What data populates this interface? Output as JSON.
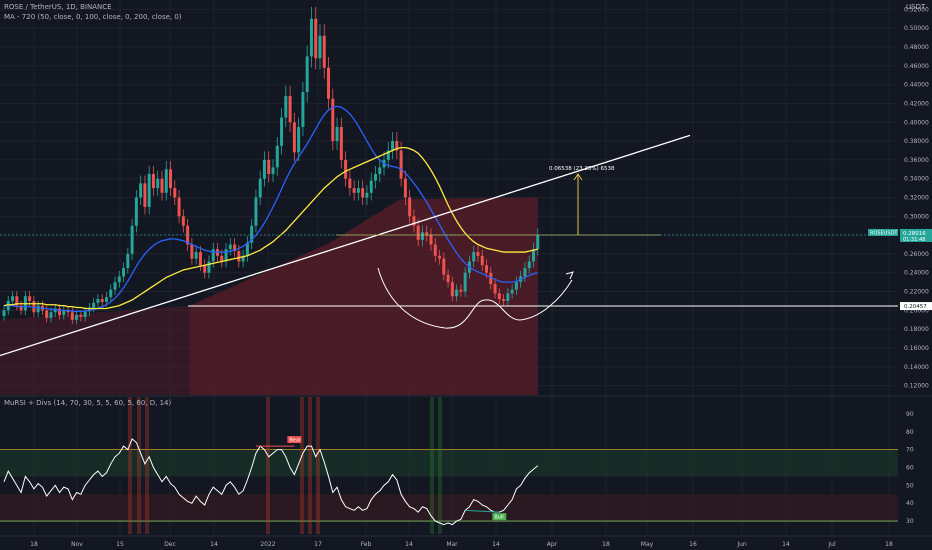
{
  "header": {
    "symbol_line": "ROSE / TetherUS, 1D, BINANCE",
    "ma_line": "MA - 720 (50, close, 0, 100, close, 0, 200, close, 0)",
    "quote_currency": "USDT",
    "indicator_line": "MuRSI + Divs (14, 70, 30, 5, 5, 60, 5, 60, D, 14)"
  },
  "colors": {
    "background": "#131722",
    "up_candle": "#26a69a",
    "down_candle": "#ef5350",
    "ma_fast": "#2962ff",
    "ma_slow": "#ffeb3b",
    "trendline": "#ffffff",
    "volume_profile": "#5b1d2a",
    "rsi_line": "#ffffff"
  },
  "chart_data": [
    {
      "type": "candlestick",
      "symbol": "ROSEUSDT",
      "interval": "1D",
      "y_scale": "linear",
      "ylim": [
        0.11,
        0.53
      ],
      "y_ticks": [
        "0.52000",
        "0.50000",
        "0.48000",
        "0.46000",
        "0.44000",
        "0.42000",
        "0.40000",
        "0.38000",
        "0.36000",
        "0.34000",
        "0.32000",
        "0.30000",
        "0.28000",
        "0.26000",
        "0.24000",
        "0.22000",
        "0.20000",
        "0.18000",
        "0.16000",
        "0.14000",
        "0.12000"
      ],
      "x_ticks": [
        "18",
        "Nov",
        "15",
        "Dec",
        "14",
        "2022",
        "17",
        "Feb",
        "14",
        "Mar",
        "14",
        "Apr",
        "18",
        "May",
        "16",
        "Jun",
        "14",
        "Jul",
        "18"
      ],
      "last_price": {
        "label": "ROSEUSDT",
        "value": "0.28016",
        "countdown": "01:31:48"
      },
      "support_level": {
        "value": "0.20457"
      },
      "measure": {
        "label": "0.06538 (23.35%) 6538",
        "from": 0.2802,
        "to": 0.345
      },
      "closes": [
        0.2,
        0.21,
        0.215,
        0.205,
        0.2,
        0.215,
        0.21,
        0.198,
        0.205,
        0.2,
        0.192,
        0.198,
        0.202,
        0.195,
        0.2,
        0.198,
        0.19,
        0.195,
        0.193,
        0.199,
        0.203,
        0.208,
        0.212,
        0.209,
        0.214,
        0.222,
        0.23,
        0.236,
        0.245,
        0.26,
        0.29,
        0.32,
        0.335,
        0.31,
        0.345,
        0.33,
        0.34,
        0.325,
        0.35,
        0.33,
        0.32,
        0.3,
        0.29,
        0.27,
        0.255,
        0.262,
        0.248,
        0.24,
        0.252,
        0.265,
        0.258,
        0.252,
        0.265,
        0.27,
        0.263,
        0.252,
        0.258,
        0.272,
        0.29,
        0.32,
        0.34,
        0.36,
        0.345,
        0.352,
        0.375,
        0.405,
        0.428,
        0.4,
        0.368,
        0.395,
        0.432,
        0.47,
        0.51,
        0.468,
        0.492,
        0.458,
        0.425,
        0.38,
        0.395,
        0.36,
        0.34,
        0.33,
        0.325,
        0.33,
        0.32,
        0.325,
        0.338,
        0.345,
        0.352,
        0.36,
        0.37,
        0.38,
        0.37,
        0.34,
        0.32,
        0.3,
        0.29,
        0.275,
        0.283,
        0.28,
        0.27,
        0.258,
        0.255,
        0.238,
        0.23,
        0.215,
        0.222,
        0.22,
        0.24,
        0.252,
        0.262,
        0.258,
        0.248,
        0.24,
        0.228,
        0.218,
        0.212,
        0.21,
        0.218,
        0.222,
        0.23,
        0.236,
        0.245,
        0.252,
        0.265,
        0.28
      ],
      "series": [
        {
          "name": "MA 50",
          "values": [
            0.205,
            0.205,
            0.205,
            0.204,
            0.204,
            0.204,
            0.204,
            0.203,
            0.203,
            0.202,
            0.202,
            0.201,
            0.201,
            0.2,
            0.2,
            0.2,
            0.199,
            0.199,
            0.199,
            0.199,
            0.2,
            0.201,
            0.202,
            0.204,
            0.206,
            0.209,
            0.213,
            0.218,
            0.224,
            0.231,
            0.239,
            0.247,
            0.254,
            0.26,
            0.265,
            0.269,
            0.272,
            0.274,
            0.275,
            0.276,
            0.276,
            0.275,
            0.274,
            0.272,
            0.27,
            0.268,
            0.266,
            0.264,
            0.263,
            0.262,
            0.262,
            0.262,
            0.262,
            0.263,
            0.264,
            0.266,
            0.268,
            0.271,
            0.275,
            0.28,
            0.286,
            0.293,
            0.301,
            0.31,
            0.319,
            0.329,
            0.339,
            0.348,
            0.356,
            0.363,
            0.37,
            0.377,
            0.385,
            0.393,
            0.401,
            0.408,
            0.413,
            0.416,
            0.417,
            0.416,
            0.413,
            0.409,
            0.403,
            0.396,
            0.388,
            0.38,
            0.372,
            0.365,
            0.36,
            0.356,
            0.354,
            0.353,
            0.352,
            0.35,
            0.346,
            0.341,
            0.335,
            0.329,
            0.322,
            0.315,
            0.307,
            0.299,
            0.291,
            0.283,
            0.275,
            0.268,
            0.261,
            0.255,
            0.25,
            0.246,
            0.243,
            0.241,
            0.239,
            0.237,
            0.235,
            0.233,
            0.231,
            0.23,
            0.23,
            0.23,
            0.231,
            0.233,
            0.235,
            0.237,
            0.239,
            0.24
          ]
        },
        {
          "name": "MA 100",
          "values": [
            0.205,
            0.206,
            0.206,
            0.207,
            0.207,
            0.207,
            0.207,
            0.207,
            0.207,
            0.207,
            0.206,
            0.206,
            0.206,
            0.205,
            0.205,
            0.204,
            0.204,
            0.203,
            0.203,
            0.202,
            0.202,
            0.202,
            0.202,
            0.202,
            0.202,
            0.203,
            0.204,
            0.205,
            0.207,
            0.209,
            0.211,
            0.214,
            0.217,
            0.22,
            0.223,
            0.226,
            0.229,
            0.232,
            0.235,
            0.237,
            0.239,
            0.241,
            0.243,
            0.244,
            0.245,
            0.246,
            0.247,
            0.248,
            0.249,
            0.25,
            0.251,
            0.252,
            0.253,
            0.254,
            0.255,
            0.256,
            0.257,
            0.258,
            0.26,
            0.262,
            0.264,
            0.267,
            0.27,
            0.273,
            0.277,
            0.281,
            0.285,
            0.29,
            0.295,
            0.3,
            0.305,
            0.31,
            0.315,
            0.32,
            0.325,
            0.33,
            0.334,
            0.338,
            0.342,
            0.345,
            0.348,
            0.35,
            0.352,
            0.354,
            0.356,
            0.358,
            0.36,
            0.362,
            0.364,
            0.366,
            0.368,
            0.37,
            0.372,
            0.373,
            0.373,
            0.372,
            0.37,
            0.367,
            0.362,
            0.356,
            0.349,
            0.341,
            0.332,
            0.322,
            0.312,
            0.303,
            0.295,
            0.288,
            0.282,
            0.277,
            0.273,
            0.27,
            0.268,
            0.266,
            0.265,
            0.264,
            0.263,
            0.262,
            0.262,
            0.262,
            0.262,
            0.262,
            0.262,
            0.263,
            0.264,
            0.265
          ]
        }
      ],
      "volume_profile_levels": [
        {
          "price": 0.31,
          "width": 0.52
        },
        {
          "price": 0.29,
          "width": 0.57
        },
        {
          "price": 0.27,
          "width": 0.71
        },
        {
          "price": 0.25,
          "width": 1.0
        },
        {
          "price": 0.23,
          "width": 1.0
        },
        {
          "price": 0.21,
          "width": 1.0
        },
        {
          "price": 0.19,
          "width": 1.0
        },
        {
          "price": 0.17,
          "width": 1.0
        },
        {
          "price": 0.15,
          "width": 1.0
        },
        {
          "price": 0.13,
          "width": 1.0
        }
      ]
    },
    {
      "type": "line",
      "name": "MuRSI + Divs",
      "ylim": [
        25,
        95
      ],
      "y_ticks": [
        "90",
        "80",
        "70",
        "60",
        "50",
        "40",
        "30"
      ],
      "levels": {
        "overbought": 70,
        "oversold": 30
      },
      "signals": [
        {
          "label": "Bear",
          "index": 68
        },
        {
          "label": "Bull",
          "index": 116
        }
      ],
      "values": [
        52,
        58,
        54,
        50,
        46,
        55,
        52,
        48,
        51,
        49,
        44,
        47,
        50,
        46,
        49,
        48,
        42,
        46,
        45,
        50,
        53,
        56,
        58,
        55,
        57,
        62,
        66,
        68,
        72,
        70,
        76,
        74,
        68,
        62,
        66,
        60,
        56,
        52,
        55,
        51,
        49,
        45,
        43,
        41,
        40,
        44,
        41,
        39,
        45,
        49,
        47,
        45,
        50,
        52,
        49,
        45,
        47,
        53,
        60,
        68,
        72,
        70,
        66,
        68,
        70,
        70,
        66,
        60,
        56,
        62,
        68,
        72,
        72,
        66,
        70,
        63,
        55,
        46,
        49,
        42,
        38,
        37,
        36,
        38,
        36,
        37,
        42,
        45,
        47,
        50,
        52,
        56,
        53,
        45,
        41,
        38,
        37,
        35,
        38,
        37,
        33,
        30,
        29,
        28,
        29,
        28,
        30,
        31,
        36,
        38,
        42,
        41,
        39,
        38,
        36,
        35,
        35,
        36,
        39,
        42,
        48,
        50,
        54,
        57,
        59,
        61
      ]
    }
  ]
}
